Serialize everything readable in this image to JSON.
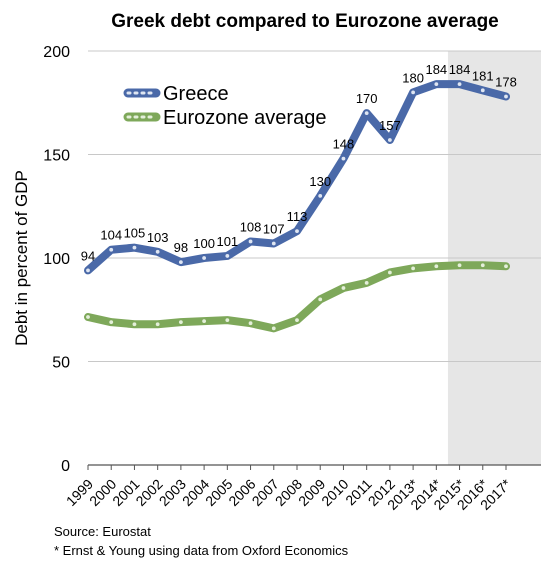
{
  "chart_data": {
    "type": "line",
    "title": "Greek debt compared to Eurozone average",
    "ylabel": "Debt in percent of GDP",
    "xlabel": "",
    "ylim": [
      0,
      200
    ],
    "yticks": [
      0,
      50,
      100,
      150,
      200
    ],
    "grid": true,
    "legend_position": "top-left",
    "shaded_region": {
      "from": "2014*",
      "to": "2017*"
    },
    "categories": [
      "1999",
      "2000",
      "2001",
      "2002",
      "2003",
      "2004",
      "2005",
      "2006",
      "2007",
      "2008",
      "2009",
      "2010",
      "2011",
      "2012",
      "2013*",
      "2014*",
      "2015*",
      "2016*",
      "2017*"
    ],
    "series": [
      {
        "name": "Greece",
        "color": "#4a69a8",
        "values": [
          94,
          104,
          105,
          103,
          98,
          100,
          101,
          108,
          107,
          113,
          130,
          148,
          170,
          157,
          180,
          184,
          184,
          181,
          178
        ],
        "labels": [
          "94",
          "104",
          "105",
          "103",
          "98",
          "100",
          "101",
          "108",
          "107",
          "113",
          "130",
          "148",
          "170",
          "157",
          "180",
          "184",
          "184",
          "181",
          "178"
        ]
      },
      {
        "name": "Eurozone average",
        "color": "#7ea85a",
        "values": [
          71.5,
          69,
          68,
          68,
          69,
          69.5,
          70,
          68.5,
          66,
          70,
          80,
          85.5,
          88,
          93,
          95,
          96,
          96.5,
          96.5,
          96
        ]
      }
    ]
  },
  "notes": {
    "source": "Source: Eurostat",
    "footnote": "* Ernst & Young using data from Oxford Economics"
  }
}
